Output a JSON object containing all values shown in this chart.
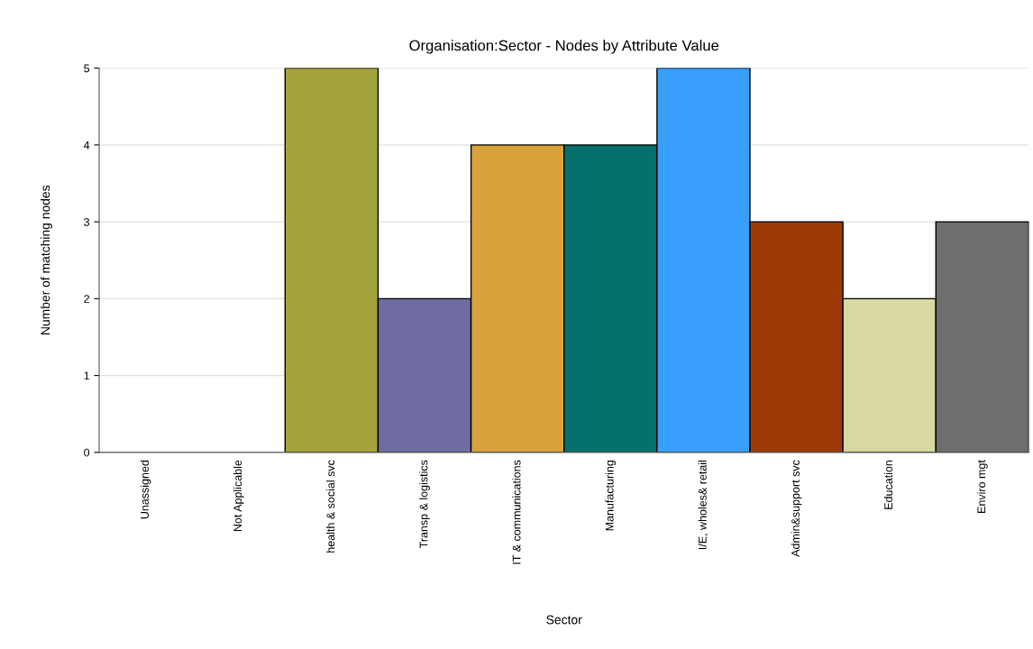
{
  "chart_data": {
    "type": "bar",
    "title": "Organisation:Sector - Nodes by Attribute Value",
    "xlabel": "Sector",
    "ylabel": "Number of matching nodes",
    "categories": [
      "Unassigned",
      "Not Applicable",
      "health & social svc",
      "Transp & logistics",
      "IT & communications",
      "Manufacturing",
      "I/E, wholes& retail",
      "Admin&support svc",
      "Education",
      "Enviro mgt"
    ],
    "values": [
      0,
      0,
      5,
      2,
      4,
      4,
      5,
      3,
      2,
      3
    ],
    "colors": [
      null,
      null,
      "#a4a43c",
      "#6e6ca0",
      "#d9a23c",
      "#06706c",
      "#389ffe",
      "#9e3a08",
      "#d8d8a0",
      "#6e6e6e"
    ],
    "ylim": [
      0,
      5
    ],
    "yticks": [
      0,
      1,
      2,
      3,
      4,
      5
    ],
    "grid": "y",
    "legend": false
  }
}
